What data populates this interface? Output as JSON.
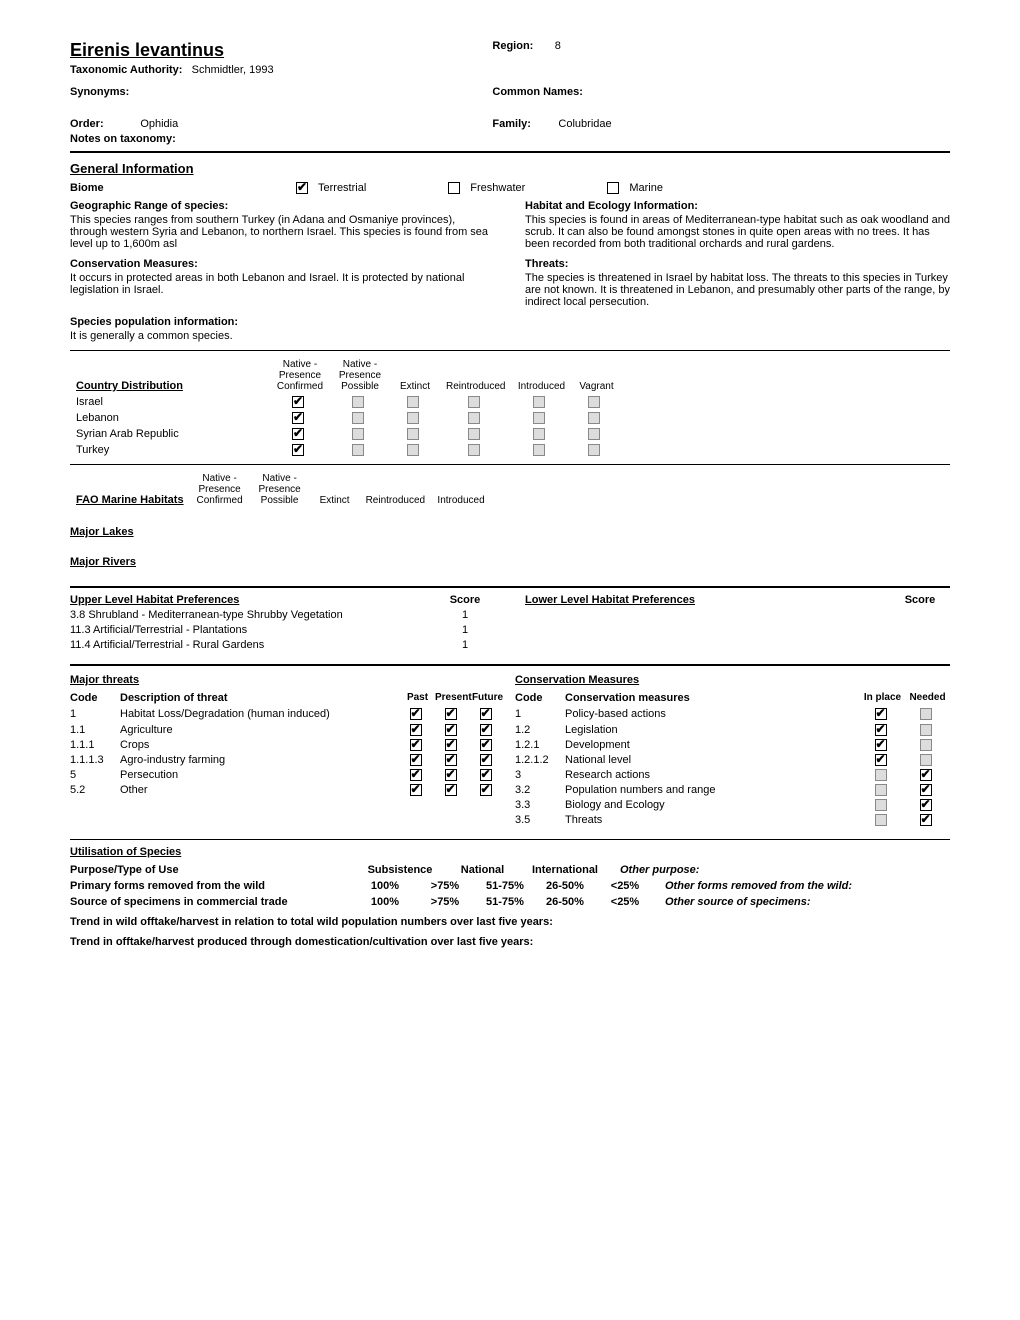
{
  "species_name": "Eirenis levantinus",
  "region_label": "Region:",
  "region_value": "8",
  "tax_auth_label": "Taxonomic Authority:",
  "tax_auth_value": "Schmidtler, 1993",
  "synonyms_label": "Synonyms:",
  "common_names_label": "Common Names:",
  "order_label": "Order:",
  "order_value": "Ophidia",
  "family_label": "Family:",
  "family_value": "Colubridae",
  "notes_tax_label": "Notes on taxonomy:",
  "gen_info_title": "General Information",
  "biome_label": "Biome",
  "biomes": {
    "terrestrial": "Terrestrial",
    "freshwater": "Freshwater",
    "marine": "Marine"
  },
  "geo_range_label": "Geographic Range of species:",
  "geo_range_text": "This species ranges from southern Turkey (in Adana and Osmaniye provinces), through western Syria and Lebanon, to northern Israel. This species is found from sea level up to 1,600m asl",
  "habitat_label": "Habitat and Ecology Information:",
  "habitat_text": "This species is found in areas of Mediterranean-type habitat such as oak woodland and scrub. It can also be found amongst stones in quite open areas with no trees. It has been recorded from both traditional orchards and rural gardens.",
  "cons_meas_label": "Conservation Measures:",
  "cons_meas_text": "It occurs in protected areas in both Lebanon and Israel. It is protected by national legislation in Israel.",
  "threats_label": "Threats:",
  "threats_text": "The species is threatened in Israel by habitat loss. The threats to this species in Turkey are not known. It is threatened in Lebanon, and presumably other parts of the range, by indirect local persecution.",
  "pop_info_label": "Species population information:",
  "pop_info_text": "It is generally a common species.",
  "country_dist_title": "Country Distribution",
  "dist_headers": [
    "Native - Presence Confirmed",
    "Native - Presence Possible",
    "Extinct",
    "Reintroduced",
    "Introduced",
    "Vagrant"
  ],
  "countries": [
    {
      "name": "Israel",
      "vals": [
        true,
        false,
        false,
        false,
        false,
        false
      ]
    },
    {
      "name": "Lebanon",
      "vals": [
        true,
        false,
        false,
        false,
        false,
        false
      ]
    },
    {
      "name": "Syrian Arab Republic",
      "vals": [
        true,
        false,
        false,
        false,
        false,
        false
      ]
    },
    {
      "name": "Turkey",
      "vals": [
        true,
        false,
        false,
        false,
        false,
        false
      ]
    }
  ],
  "fao_title": "FAO Marine Habitats",
  "fao_headers": [
    "Native - Presence Confirmed",
    "Native - Presence Possible",
    "Extinct",
    "Reintroduced",
    "Introduced"
  ],
  "lakes_title": "Major Lakes",
  "rivers_title": "Major Rivers",
  "upper_hab_title": "Upper Level Habitat Preferences",
  "lower_hab_title": "Lower Level Habitat Preferences",
  "score_label": "Score",
  "upper_habs": [
    {
      "label": "3.8  Shrubland - Mediterranean-type Shrubby Vegetation",
      "score": "1"
    },
    {
      "label": "11.3 Artificial/Terrestrial - Plantations",
      "score": "1"
    },
    {
      "label": "11.4 Artificial/Terrestrial - Rural Gardens",
      "score": "1"
    }
  ],
  "major_threats_title": "Major threats",
  "cons_measures_title": "Conservation Measures",
  "threat_cols": {
    "code": "Code",
    "desc": "Description of threat",
    "past": "Past",
    "present": "Present",
    "future": "Future"
  },
  "cons_cols": {
    "code": "Code",
    "desc": "Conservation measures",
    "inplace": "In place",
    "needed": "Needed"
  },
  "threat_rows": [
    {
      "code": "1",
      "desc": "Habitat Loss/Degradation (human induced)",
      "p": true,
      "pr": true,
      "f": true
    },
    {
      "code": "1.1",
      "desc": "Agriculture",
      "p": true,
      "pr": true,
      "f": true
    },
    {
      "code": "1.1.1",
      "desc": "Crops",
      "p": true,
      "pr": true,
      "f": true
    },
    {
      "code": "1.1.1.3",
      "desc": "Agro-industry farming",
      "p": true,
      "pr": true,
      "f": true
    },
    {
      "code": "5",
      "desc": "Persecution",
      "p": true,
      "pr": true,
      "f": true
    },
    {
      "code": "5.2",
      "desc": "Other",
      "p": true,
      "pr": true,
      "f": true
    }
  ],
  "cons_rows": [
    {
      "code": "1",
      "desc": "Policy-based actions",
      "ip": true,
      "nd": false
    },
    {
      "code": "1.2",
      "desc": "Legislation",
      "ip": true,
      "nd": false
    },
    {
      "code": "1.2.1",
      "desc": "Development",
      "ip": true,
      "nd": false
    },
    {
      "code": "1.2.1.2",
      "desc": "National level",
      "ip": true,
      "nd": false
    },
    {
      "code": "3",
      "desc": "Research actions",
      "ip": false,
      "nd": true
    },
    {
      "code": "3.2",
      "desc": "Population numbers and range",
      "ip": false,
      "nd": true
    },
    {
      "code": "3.3",
      "desc": "Biology and Ecology",
      "ip": false,
      "nd": true
    },
    {
      "code": "3.5",
      "desc": "Threats",
      "ip": false,
      "nd": true
    }
  ],
  "util_title": "Utilisation of Species",
  "util_header": {
    "purpose": "Purpose/Type of Use",
    "sub": "Subsistence",
    "nat": "National",
    "intl": "International",
    "other": "Other purpose:"
  },
  "util_rows": {
    "primary": {
      "label": "Primary forms removed from the wild",
      "cols": [
        "100%",
        ">75%",
        "51-75%",
        "26-50%",
        "<25%"
      ],
      "other": "Other forms removed from the wild:"
    },
    "source": {
      "label": "Source of specimens in commercial trade",
      "cols": [
        "100%",
        ">75%",
        "51-75%",
        "26-50%",
        "<25%"
      ],
      "other": "Other source of specimens:"
    }
  },
  "trend1": "Trend in wild offtake/harvest in relation to total wild population numbers over last five years:",
  "trend2": "Trend in offtake/harvest produced through domestication/cultivation over last five years:"
}
